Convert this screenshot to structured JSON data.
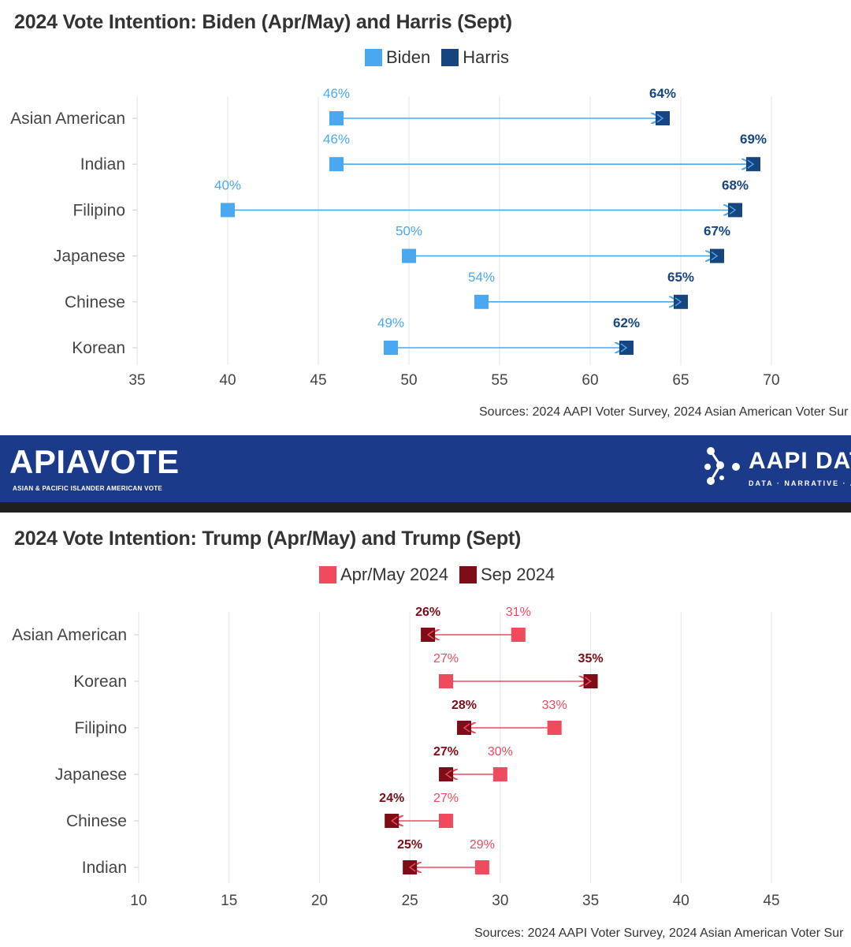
{
  "chart_data": [
    {
      "type": "dumbbell",
      "title": "2024 Vote Intention: Biden (Apr/May) and Harris (Sept)",
      "legend": [
        {
          "name": "Biden",
          "color": "#4aa8f0"
        },
        {
          "name": "Harris",
          "color": "#17457f"
        }
      ],
      "categories": [
        "Asian American",
        "Indian",
        "Filipino",
        "Japanese",
        "Chinese",
        "Korean"
      ],
      "series": [
        {
          "name": "Biden",
          "values": [
            46,
            46,
            40,
            50,
            54,
            49
          ],
          "labels": [
            "46%",
            "46%",
            "40%",
            "50%",
            "54%",
            "49%"
          ]
        },
        {
          "name": "Harris",
          "values": [
            64,
            69,
            68,
            67,
            65,
            62
          ],
          "labels": [
            "64%",
            "69%",
            "68%",
            "67%",
            "65%",
            "62%"
          ]
        }
      ],
      "arrow_color": "#4aa8f0",
      "xlim": [
        35,
        70
      ],
      "xticks": [
        "35",
        "40",
        "45",
        "50",
        "55",
        "60",
        "65",
        "70"
      ],
      "grid": true,
      "legend_position": "top-center",
      "source": "Sources: 2024 AAPI Voter Survey, 2024 Asian American Voter Sur"
    },
    {
      "type": "dumbbell",
      "title": "2024 Vote Intention: Trump (Apr/May) and Trump (Sept)",
      "legend": [
        {
          "name": "Apr/May 2024",
          "color": "#ef4a5e"
        },
        {
          "name": "Sep 2024",
          "color": "#7e0d17"
        }
      ],
      "categories": [
        "Asian American",
        "Korean",
        "Filipino",
        "Japanese",
        "Chinese",
        "Indian"
      ],
      "series": [
        {
          "name": "Apr/May 2024",
          "values": [
            31,
            27,
            33,
            30,
            27,
            29
          ],
          "labels": [
            "31%",
            "27%",
            "33%",
            "30%",
            "27%",
            "29%"
          ]
        },
        {
          "name": "Sep 2024",
          "values": [
            26,
            35,
            28,
            27,
            24,
            25
          ],
          "labels": [
            "26%",
            "35%",
            "28%",
            "27%",
            "24%",
            "25%"
          ]
        }
      ],
      "arrow_color": "#ef4a5e",
      "xlim": [
        10,
        45
      ],
      "xticks": [
        "10",
        "15",
        "20",
        "25",
        "30",
        "35",
        "40",
        "45"
      ],
      "grid": true,
      "legend_position": "top-center",
      "source": "Sources: 2024 AAPI Voter Survey, 2024 Asian American Voter Sur"
    }
  ],
  "banner": {
    "left_logo": "APIAVOTE",
    "left_tagline": "ASIAN & PACIFIC ISLANDER AMERICAN VOTE",
    "right_logo": "AAPI DAT",
    "right_tagline": "DATA · NARRATIVE · AC"
  }
}
